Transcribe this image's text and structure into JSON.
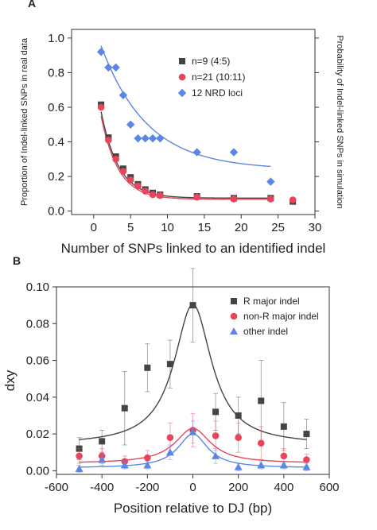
{
  "chart_data": [
    {
      "panel": "A",
      "type": "scatter",
      "xlabel": "Number of SNPs linked to an identified indel",
      "ylabel": "Proportion of Indel-linked SNPs in real data",
      "ylabel_right": "Probability of Indel-linked SNPs in simulation",
      "xlim": [
        -3,
        30
      ],
      "ylim": [
        -0.02,
        1.05
      ],
      "xticks": [
        "0",
        "5",
        "10",
        "15",
        "20",
        "25",
        "30"
      ],
      "xtick_values": [
        0,
        5,
        10,
        15,
        20,
        25,
        30
      ],
      "yticks": [
        "0.0",
        "0.2",
        "0.4",
        "0.6",
        "0.8",
        "1.0"
      ],
      "ytick_values": [
        0.0,
        0.2,
        0.4,
        0.6,
        0.8,
        1.0
      ],
      "legend_position": "top-right",
      "series": [
        {
          "name": "n=9 (4:5)",
          "marker": "square",
          "color": "#444444",
          "x": [
            1,
            2,
            3,
            4,
            5,
            6,
            7,
            8,
            9,
            14,
            19,
            24,
            27
          ],
          "y": [
            0.615,
            0.425,
            0.315,
            0.245,
            0.195,
            0.155,
            0.125,
            0.105,
            0.095,
            0.085,
            0.075,
            0.075,
            0.055
          ],
          "fit": {
            "a": 0.76,
            "b": 0.42,
            "c": 0.075
          }
        },
        {
          "name": "n=21 (10:11)",
          "marker": "circle",
          "color": "#e8455a",
          "x": [
            1,
            2,
            3,
            4,
            5,
            6,
            7,
            8,
            9,
            14,
            19,
            24,
            27
          ],
          "y": [
            0.6,
            0.41,
            0.3,
            0.23,
            0.18,
            0.145,
            0.115,
            0.095,
            0.09,
            0.08,
            0.07,
            0.07,
            0.065
          ],
          "fit": {
            "a": 0.74,
            "b": 0.43,
            "c": 0.068
          }
        },
        {
          "name": "12 NRD loci",
          "marker": "diamond",
          "color": "#5b86e5",
          "x": [
            1,
            2,
            3,
            4,
            5,
            6,
            7,
            8,
            9,
            14,
            19,
            24
          ],
          "y": [
            0.92,
            0.83,
            0.83,
            0.67,
            0.5,
            0.42,
            0.42,
            0.42,
            0.42,
            0.34,
            0.34,
            0.17
          ],
          "fit": {
            "a": 0.84,
            "b": 0.16,
            "c": 0.24
          }
        }
      ]
    },
    {
      "panel": "B",
      "type": "scatter",
      "xlabel": "Position relative to DJ (bp)",
      "ylabel": "dxy",
      "xlim": [
        -600,
        600
      ],
      "ylim": [
        -0.002,
        0.1
      ],
      "xticks": [
        "-600",
        "-400",
        "-200",
        "0",
        "200",
        "400",
        "600"
      ],
      "xtick_values": [
        -600,
        -400,
        -200,
        0,
        200,
        400,
        600
      ],
      "yticks": [
        "0.00",
        "0.02",
        "0.04",
        "0.06",
        "0.08",
        "0.10"
      ],
      "ytick_values": [
        0.0,
        0.02,
        0.04,
        0.06,
        0.08,
        0.1
      ],
      "legend_position": "top-right",
      "series": [
        {
          "name": "R major indel",
          "marker": "square",
          "color": "#444444",
          "x": [
            -500,
            -400,
            -300,
            -200,
            -100,
            0,
            100,
            200,
            300,
            400,
            500
          ],
          "y": [
            0.012,
            0.016,
            0.034,
            0.056,
            0.058,
            0.09,
            0.032,
            0.03,
            0.038,
            0.024,
            0.02
          ],
          "err": [
            0.006,
            0.006,
            0.02,
            0.013,
            0.013,
            0.02,
            0.01,
            0.01,
            0.022,
            0.013,
            0.008
          ],
          "fit": {
            "y0": 0.014,
            "A": 0.0765,
            "w": 100
          }
        },
        {
          "name": "non-R major indel",
          "marker": "circle",
          "color": "#e8455a",
          "x": [
            -500,
            -400,
            -300,
            -200,
            -100,
            0,
            100,
            200,
            300,
            400,
            500
          ],
          "y": [
            0.008,
            0.008,
            0.005,
            0.007,
            0.018,
            0.022,
            0.019,
            0.018,
            0.015,
            0.008,
            0.006
          ],
          "err": [
            0.004,
            0.004,
            0.003,
            0.004,
            0.008,
            0.009,
            0.008,
            0.008,
            0.009,
            0.004,
            0.003
          ],
          "fit": {
            "y0": 0.004,
            "A": 0.019,
            "w": 95
          }
        },
        {
          "name": "other indel",
          "marker": "triangle",
          "color": "#5b86e5",
          "x": [
            -500,
            -400,
            -300,
            -200,
            -100,
            0,
            100,
            200,
            300,
            400,
            500
          ],
          "y": [
            0.001,
            0.006,
            0.003,
            0.003,
            0.01,
            0.021,
            0.008,
            0.002,
            0.003,
            0.003,
            0.002
          ],
          "err": [
            0.002,
            0.003,
            0.002,
            0.002,
            0.004,
            0.006,
            0.004,
            0.002,
            0.002,
            0.002,
            0.002
          ],
          "fit": {
            "y0": 0.0015,
            "A": 0.0185,
            "w": 80
          }
        }
      ]
    }
  ]
}
